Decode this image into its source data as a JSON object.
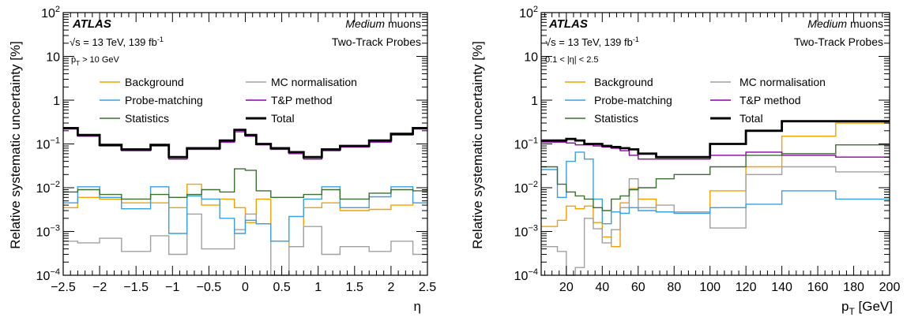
{
  "colors": {
    "background": "#f5a000",
    "mc_normalisation": "#a0a0a0",
    "probe_matching": "#3a9fe0",
    "tp_method": "#8c00a6",
    "statistics": "#3c6e32",
    "total": "#000000"
  },
  "legend_labels": {
    "background": "Background",
    "mc_normalisation": "MC normalisation",
    "probe_matching": "Probe-matching",
    "tp_method": "T&P method",
    "statistics": "Statistics",
    "total": "Total"
  },
  "common": {
    "experiment": "ATLAS",
    "energy": "√s = 13 TeV, 139 fb",
    "energy_sup": "-1",
    "wp_italic": "Medium",
    "wp_rest": " muons",
    "probes": "Two-Track Probes",
    "ylabel": "Relative systematic uncertainty [%]"
  },
  "panels": [
    {
      "selection": "p",
      "selection_sub": "T",
      "selection_rest": " > 10 GeV",
      "xlabel": "η",
      "xlabel_sub": "",
      "xlabel_rest": ""
    },
    {
      "selection": "0.1 < |η| < 2.5",
      "selection_sub": "",
      "selection_rest": "",
      "xlabel": "p",
      "xlabel_sub": "T",
      "xlabel_rest": " [GeV]"
    }
  ],
  "chart_data": [
    {
      "type": "line",
      "ylog": true,
      "xlim": [
        -2.5,
        2.5
      ],
      "ylim": [
        0.0001,
        100
      ],
      "xticks": [
        -2.5,
        -2,
        -1.5,
        -1,
        -0.5,
        0,
        0.5,
        1,
        1.5,
        2,
        2.5
      ],
      "xtick_labels": [
        "−2.5",
        "−2",
        "−1.5",
        "−1",
        "−0.5",
        "0",
        "0.5",
        "1",
        "1.5",
        "2",
        "2.5"
      ],
      "yticks": [
        0.0001,
        0.001,
        0.01,
        0.1,
        1,
        10,
        100
      ],
      "ytick_labels": [
        {
          "base": "10",
          "exp": "−4"
        },
        {
          "base": "10",
          "exp": "−3"
        },
        {
          "base": "10",
          "exp": "−2"
        },
        {
          "base": "10",
          "exp": "−1"
        },
        {
          "base": "1",
          "exp": ""
        },
        {
          "base": "10",
          "exp": ""
        },
        {
          "base": "10",
          "exp": "2"
        }
      ],
      "bin_edges": [
        -2.5,
        -2.3,
        -2.0,
        -1.7,
        -1.3,
        -1.05,
        -0.8,
        -0.6,
        -0.35,
        -0.15,
        0,
        0.15,
        0.35,
        0.6,
        0.8,
        1.05,
        1.3,
        1.7,
        2.0,
        2.3,
        2.5
      ],
      "series": [
        {
          "name": "Background",
          "key": "background",
          "values": [
            0.0035,
            0.006,
            0.0055,
            0.0045,
            0.0045,
            0.0035,
            0.012,
            0.004,
            0.0055,
            0.0035,
            0.0016,
            0.0055,
            0.0006,
            0.00045,
            0.0035,
            0.0045,
            0.003,
            0.0032,
            0.004,
            0.0045
          ]
        },
        {
          "name": "MC normalisation",
          "key": "mc_normalisation",
          "values": [
            0.0006,
            0.00055,
            0.0007,
            0.00035,
            0.0008,
            0.0003,
            0.0025,
            0.0004,
            0.0004,
            0.0011,
            0.0025,
            0.0015,
            0.0001,
            0.00045,
            0.0013,
            0.0003,
            0.00045,
            0.00035,
            0.0006,
            0.0003
          ]
        },
        {
          "name": "Probe-matching",
          "key": "probe_matching",
          "values": [
            0.0045,
            0.0105,
            0.006,
            0.0033,
            0.0105,
            0.0009,
            0.0065,
            0.0055,
            0.002,
            0.0009,
            0.0018,
            0.0015,
            0.0006,
            0.0022,
            0.0055,
            0.0105,
            0.0035,
            0.0062,
            0.0105,
            0.0045
          ]
        },
        {
          "name": "T&P method",
          "key": "tp_method",
          "values": [
            0.22,
            0.15,
            0.09,
            0.07,
            0.09,
            0.045,
            0.075,
            0.075,
            0.11,
            0.19,
            0.15,
            0.095,
            0.075,
            0.06,
            0.045,
            0.07,
            0.085,
            0.11,
            0.16,
            0.22
          ]
        },
        {
          "name": "Statistics",
          "key": "statistics",
          "values": [
            0.008,
            0.009,
            0.007,
            0.0055,
            0.007,
            0.006,
            0.007,
            0.009,
            0.008,
            0.027,
            0.025,
            0.0085,
            0.006,
            0.006,
            0.007,
            0.009,
            0.0055,
            0.0075,
            0.009,
            0.0085
          ]
        },
        {
          "name": "Total",
          "key": "total",
          "values": [
            0.23,
            0.16,
            0.095,
            0.075,
            0.095,
            0.05,
            0.08,
            0.08,
            0.12,
            0.21,
            0.16,
            0.1,
            0.08,
            0.065,
            0.05,
            0.075,
            0.09,
            0.12,
            0.17,
            0.23
          ]
        }
      ]
    },
    {
      "type": "line",
      "ylog": true,
      "xlim": [
        6,
        200
      ],
      "ylim": [
        0.0001,
        100
      ],
      "xticks": [
        20,
        40,
        60,
        80,
        100,
        120,
        140,
        160,
        180,
        200
      ],
      "xtick_labels": [
        "20",
        "40",
        "60",
        "80",
        "100",
        "120",
        "140",
        "160",
        "180",
        "200"
      ],
      "yticks": [
        0.0001,
        0.001,
        0.01,
        0.1,
        1,
        10,
        100
      ],
      "ytick_labels": [
        {
          "base": "10",
          "exp": "−4"
        },
        {
          "base": "10",
          "exp": "−3"
        },
        {
          "base": "10",
          "exp": "−2"
        },
        {
          "base": "10",
          "exp": "−1"
        },
        {
          "base": "1",
          "exp": ""
        },
        {
          "base": "10",
          "exp": ""
        },
        {
          "base": "10",
          "exp": "2"
        }
      ],
      "bin_edges": [
        6,
        15,
        20,
        25,
        30,
        35,
        40,
        45,
        50,
        55,
        60,
        70,
        80,
        100,
        120,
        140,
        170,
        200
      ],
      "series": [
        {
          "name": "Background",
          "key": "background",
          "values": [
            0.0013,
            0.0018,
            0.0038,
            0.0033,
            0.0038,
            0.0016,
            0.00075,
            0.00045,
            0.0045,
            0.0095,
            0.0055,
            0.0028,
            0.0028,
            0.0085,
            0.03,
            0.15,
            0.3
          ]
        },
        {
          "name": "MC normalisation",
          "key": "mc_normalisation",
          "values": [
            0.00045,
            0.00035,
            0.0001,
            0.00015,
            0.002,
            0.00115,
            0.00055,
            0.0011,
            0.0035,
            0.016,
            0.0035,
            0.004,
            0.0028,
            0.0012,
            0.02,
            0.03,
            0.023
          ]
        },
        {
          "name": "Probe-matching",
          "key": "probe_matching",
          "values": [
            0.026,
            0.006,
            0.04,
            0.065,
            0.045,
            0.0055,
            0.0015,
            0.0028,
            0.0026,
            0.0035,
            0.003,
            0.0028,
            0.0026,
            0.0035,
            0.0042,
            0.0085,
            0.0055
          ]
        },
        {
          "name": "T&P method",
          "key": "tp_method",
          "values": [
            0.11,
            0.11,
            0.105,
            0.095,
            0.095,
            0.09,
            0.085,
            0.08,
            0.07,
            0.055,
            0.045,
            0.045,
            0.045,
            0.055,
            0.065,
            0.055,
            0.05
          ]
        },
        {
          "name": "Statistics",
          "key": "statistics",
          "values": [
            0.03,
            0.012,
            0.008,
            0.0065,
            0.0055,
            0.0035,
            0.003,
            0.0055,
            0.0065,
            0.009,
            0.01,
            0.016,
            0.02,
            0.03,
            0.055,
            0.06,
            0.095
          ]
        },
        {
          "name": "Total",
          "key": "total",
          "values": [
            0.12,
            0.12,
            0.13,
            0.12,
            0.1,
            0.1,
            0.09,
            0.085,
            0.08,
            0.075,
            0.06,
            0.05,
            0.05,
            0.1,
            0.2,
            0.33,
            0.33
          ]
        }
      ]
    }
  ]
}
